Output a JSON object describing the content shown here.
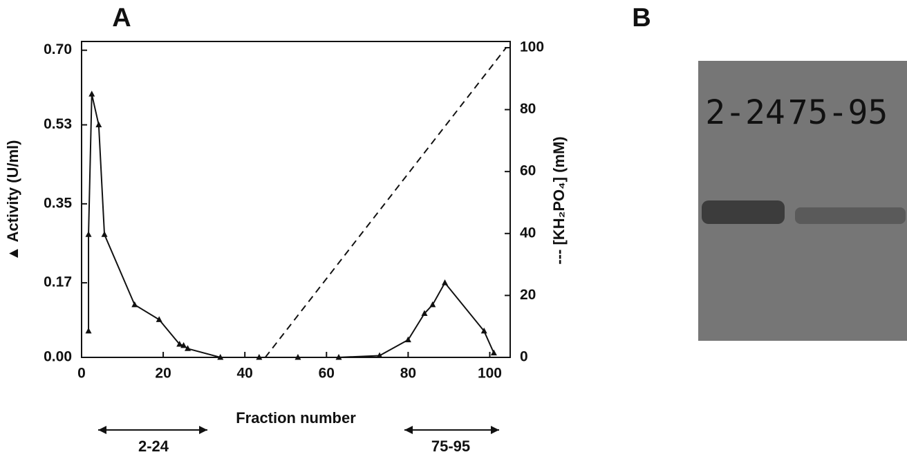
{
  "chart_data": {
    "type": "line",
    "panel_label": "A",
    "x_label": "Fraction number",
    "y_label": "▲ Activity (U/ml)",
    "y2_label": "--- [KH₂PO₄] (mM)",
    "xlim": [
      0,
      105
    ],
    "xticks": [
      0,
      20,
      40,
      60,
      80,
      100
    ],
    "ylim": [
      0,
      0.72
    ],
    "yticks": [
      {
        "value": 0,
        "label": "0.00"
      },
      {
        "value": 0.17,
        "label": "0.17"
      },
      {
        "value": 0.35,
        "label": "0.35"
      },
      {
        "value": 0.53,
        "label": "0.53"
      },
      {
        "value": 0.7,
        "label": "0.70"
      }
    ],
    "y2lim": [
      0,
      102
    ],
    "y2ticks": [
      0,
      20,
      40,
      60,
      80,
      100
    ],
    "series": [
      {
        "name": "Activity",
        "color": "#111111",
        "x": [
          1.7,
          1.7,
          2.5,
          4.2,
          5.6,
          13,
          19,
          24,
          25,
          26,
          34,
          43.5,
          53,
          63,
          73,
          80,
          84,
          86,
          89,
          98.6,
          101
        ],
        "values": [
          0.06,
          0.28,
          0.6,
          0.53,
          0.28,
          0.12,
          0.086,
          0.03,
          0.027,
          0.02,
          0,
          0,
          0,
          0,
          0.004,
          0.04,
          0.1,
          0.12,
          0.17,
          0.06,
          0.01
        ]
      },
      {
        "name": "KH₂PO₄",
        "color": "#111111",
        "axis": "y2",
        "x": [
          45,
          104
        ],
        "values": [
          0,
          100
        ]
      }
    ],
    "annotations": [
      "2-24",
      "75-95"
    ]
  },
  "panel_b": {
    "label": "B",
    "lanes": [
      "2-24",
      "75-95"
    ]
  }
}
